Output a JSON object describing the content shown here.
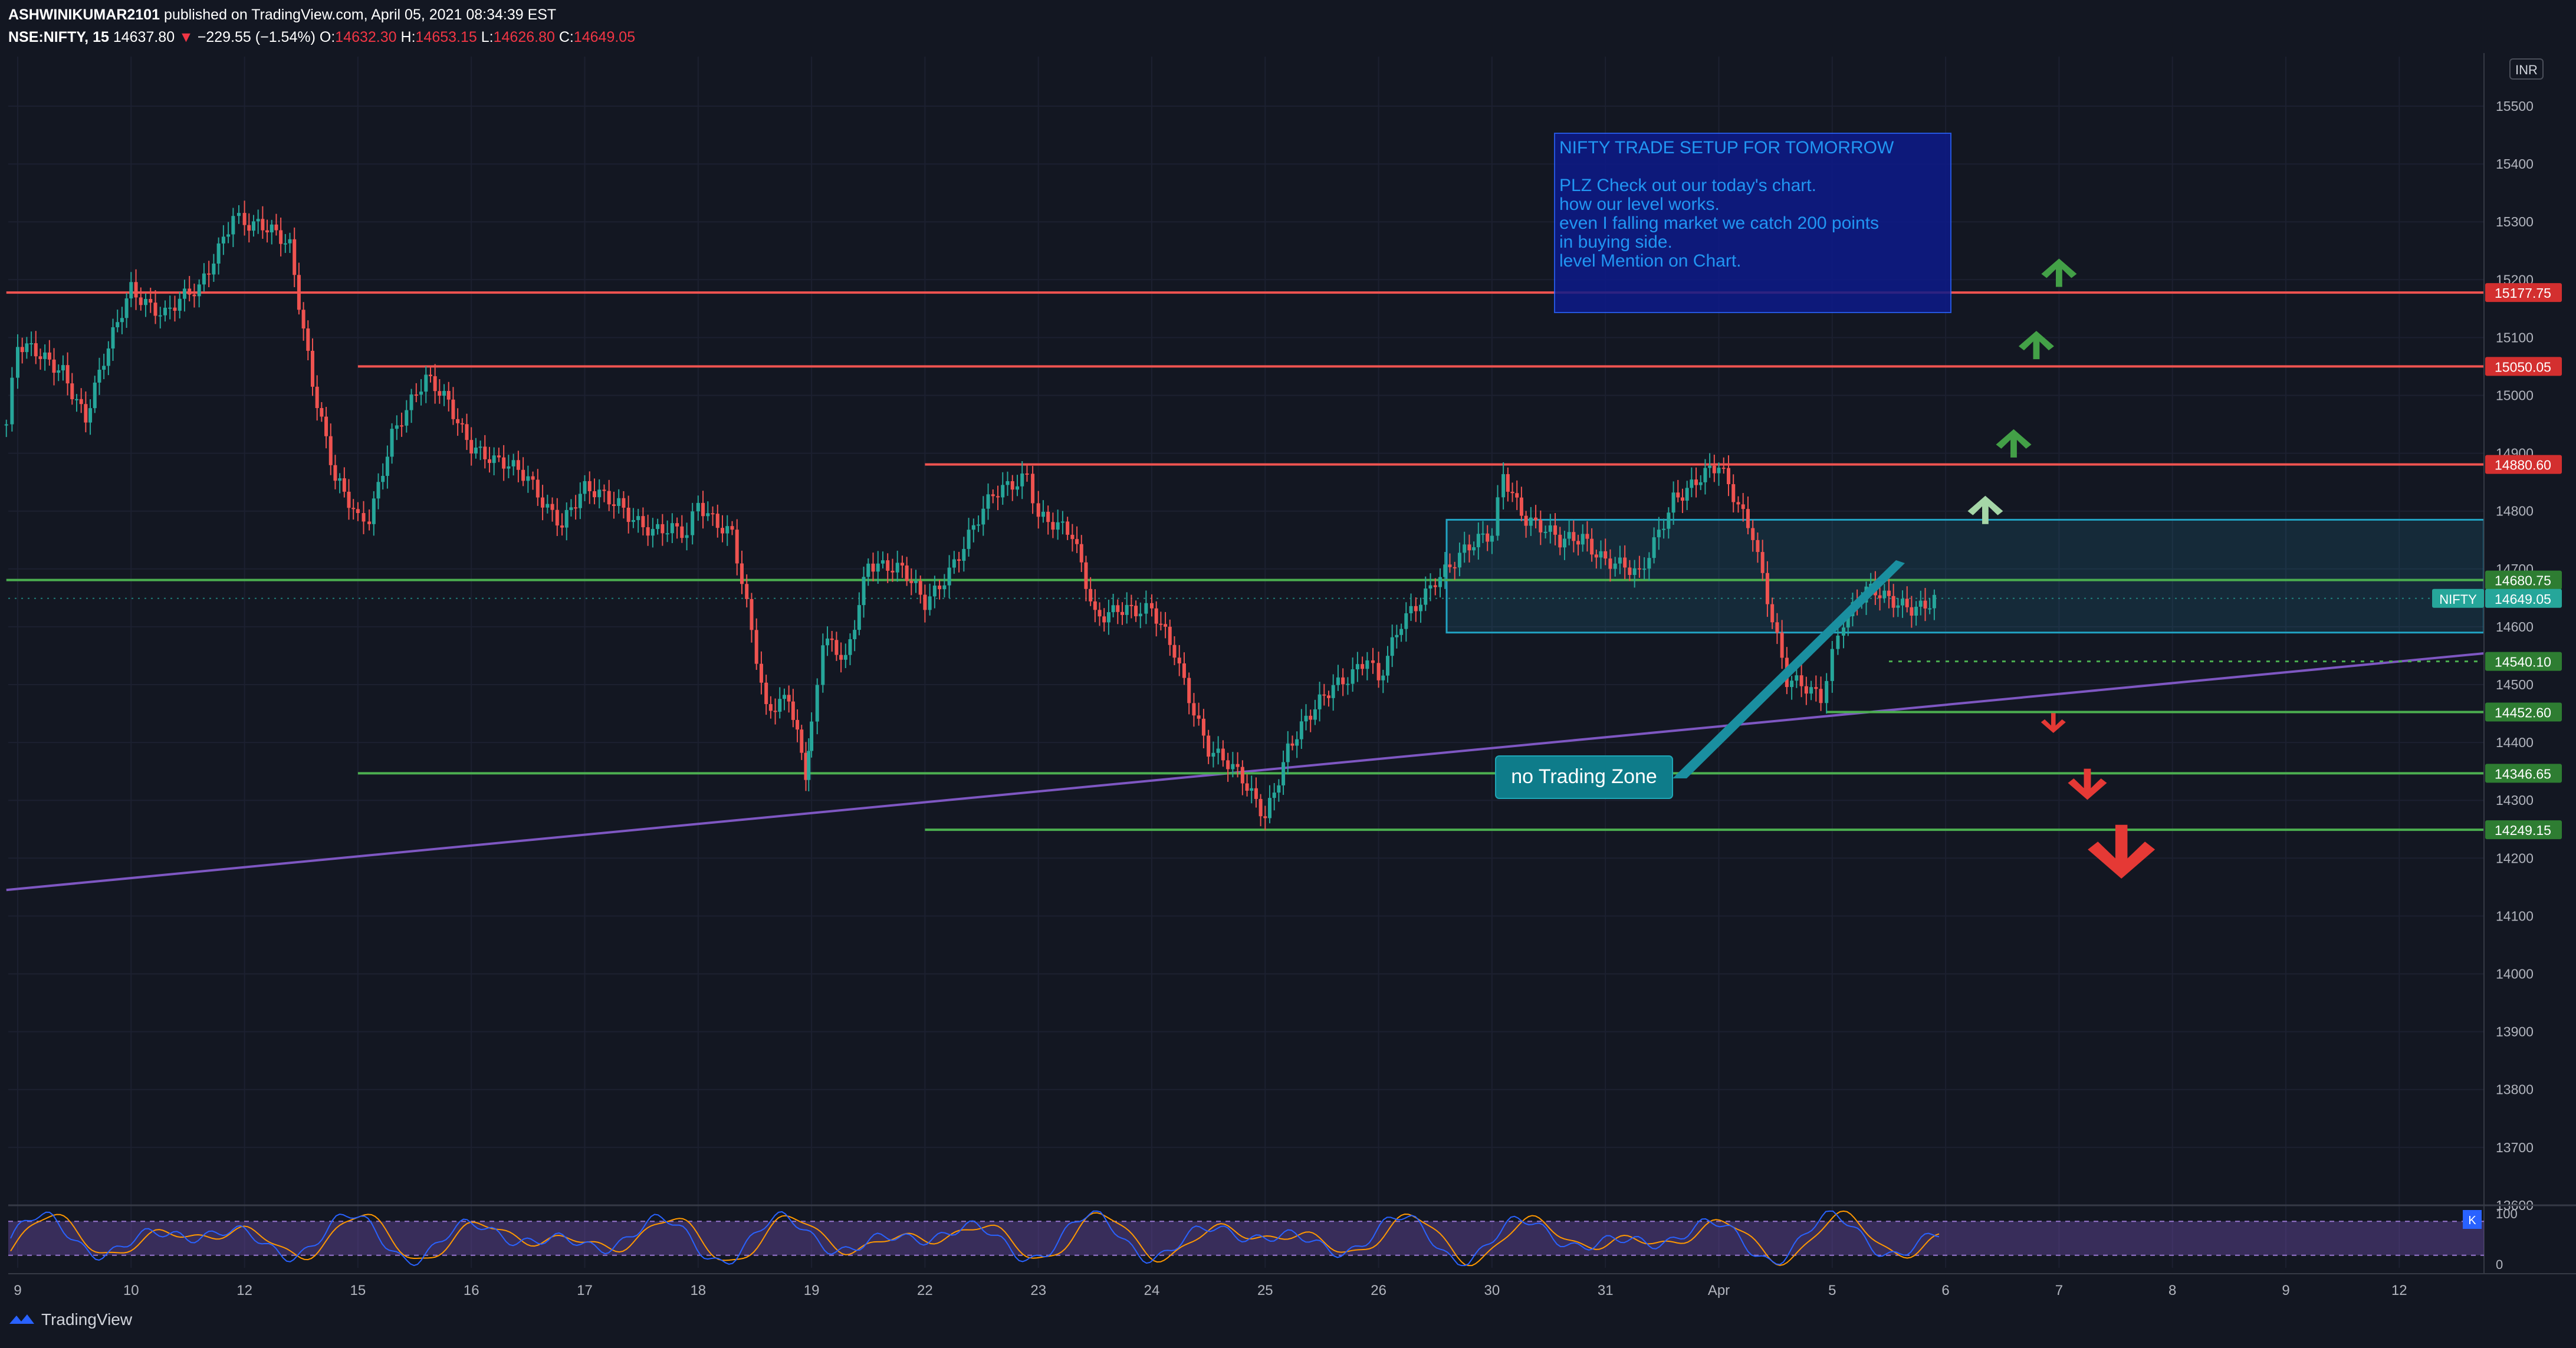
{
  "header": {
    "author": "ASHWINIKUMAR2101",
    "published": "published on TradingView.com, April 05, 2021 08:34:39 EST",
    "symbol": "NSE:NIFTY, 15",
    "last": "14637.80",
    "change": "−229.55 (−1.54%)",
    "o_label": "O:",
    "o": "14632.30",
    "h_label": "H:",
    "h": "14653.15",
    "l_label": "L:",
    "l": "14626.80",
    "c_label": "C:",
    "c": "14649.05"
  },
  "currency": "INR",
  "logo_text": "TradingView",
  "chart_data": {
    "type": "line",
    "title": "",
    "ylim": [
      13600,
      15600
    ],
    "y_ticks": [
      13600,
      13700,
      13800,
      13900,
      14000,
      14100,
      14200,
      14300,
      14400,
      14500,
      14600,
      14700,
      14800,
      14900,
      15000,
      15100,
      15200,
      15300,
      15400,
      15500
    ],
    "y_tick_labels": [
      "13600",
      "13700",
      "13800",
      "13900",
      "14000",
      "14100",
      "14200",
      "14300",
      "14400",
      "14500",
      "14600",
      "14700",
      "14800",
      "14900",
      "15000",
      "15100",
      "15200",
      "15300",
      "15400",
      "15500"
    ],
    "x_labels": [
      "9",
      "10",
      "12",
      "15",
      "16",
      "17",
      "18",
      "19",
      "22",
      "23",
      "24",
      "25",
      "26",
      "30",
      "31",
      "Apr",
      "5",
      "6",
      "7",
      "8",
      "9",
      "12"
    ],
    "x_positions": [
      0,
      1,
      2,
      3,
      4,
      5,
      6,
      7,
      8,
      9,
      10,
      11,
      12,
      13,
      14,
      15,
      16,
      17,
      18,
      19,
      20,
      21
    ],
    "price_series": {
      "x": [
        -0.1,
        0.0,
        0.4,
        0.6,
        1.0,
        1.3,
        1.6,
        1.9,
        2.0,
        2.4,
        2.6,
        2.8,
        3.0,
        3.1,
        3.3,
        3.6,
        3.8,
        4.0,
        4.2,
        4.5,
        4.8,
        5.0,
        5.3,
        5.6,
        5.9,
        6.0,
        6.3,
        6.6,
        6.8,
        6.95,
        7.0,
        7.1,
        7.3,
        7.5,
        7.8,
        8.0,
        8.3,
        8.6,
        8.9,
        9.0,
        9.3,
        9.5,
        9.7,
        9.9,
        10.0,
        10.2,
        10.5,
        10.8,
        11.0,
        11.2,
        11.4,
        11.6,
        11.9,
        12.0,
        12.2,
        12.5,
        12.8,
        13.0,
        13.1,
        13.3,
        13.6,
        13.8,
        14.0,
        14.3,
        14.6,
        15.0,
        15.3,
        15.6,
        15.9,
        16.0,
        16.1,
        16.3,
        16.5,
        16.7,
        16.9
      ],
      "close": [
        14950,
        15080,
        15050,
        14960,
        15190,
        15140,
        15180,
        15320,
        15300,
        15260,
        15030,
        14850,
        14780,
        14790,
        14940,
        15020,
        14990,
        14920,
        14880,
        14860,
        14780,
        14830,
        14820,
        14760,
        14760,
        14820,
        14760,
        14450,
        14490,
        14350,
        14420,
        14570,
        14540,
        14720,
        14690,
        14640,
        14730,
        14820,
        14870,
        14800,
        14750,
        14620,
        14640,
        14620,
        14620,
        14560,
        14390,
        14330,
        14280,
        14390,
        14440,
        14500,
        14550,
        14500,
        14600,
        14690,
        14730,
        14760,
        14870,
        14790,
        14740,
        14760,
        14720,
        14680,
        14830,
        14870,
        14770,
        14500,
        14480,
        14560,
        14620,
        14660,
        14640,
        14640,
        14649
      ]
    },
    "levels": [
      {
        "value": 15177.75,
        "label": "15177.75",
        "color": "#ef5350",
        "x_start": -0.1
      },
      {
        "value": 15050.05,
        "label": "15050.05",
        "color": "#ef5350",
        "x_start": 3.0
      },
      {
        "value": 14880.6,
        "label": "14880.60",
        "color": "#ef5350",
        "x_start": 8.0
      },
      {
        "value": 14680.75,
        "label": "14680.75",
        "color": "#4caf50",
        "x_start": -0.1
      },
      {
        "value": 14540.1,
        "label": "14540.10",
        "color": "#4caf50",
        "x_start": 16.5,
        "dashed": true
      },
      {
        "value": 14452.6,
        "label": "14452.60",
        "color": "#4caf50",
        "x_start": 15.95
      },
      {
        "value": 14346.65,
        "label": "14346.65",
        "color": "#4caf50",
        "x_start": 3.0
      },
      {
        "value": 14249.15,
        "label": "14249.15",
        "color": "#4caf50",
        "x_start": 8.0
      }
    ],
    "current": {
      "value": 14649.05,
      "label": "14649.05",
      "tag": "NIFTY"
    },
    "trendline": {
      "x": [
        -0.1,
        21.8
      ],
      "y": [
        14145,
        14555
      ],
      "color": "#7e57c2"
    },
    "zone": {
      "x": [
        12.6,
        21.8
      ],
      "y": [
        14590,
        14785
      ],
      "color": "#22a3c3"
    },
    "zone_label": "no Trading Zone",
    "note": {
      "lines": [
        "NIFTY TRADE SETUP FOR TOMORROW",
        "",
        "PLZ Check out our today's  chart.",
        "how our level works.",
        "even I falling market we catch 200 points",
        "in buying side.",
        "level Mention on Chart."
      ]
    },
    "up_arrows": [
      {
        "x": 18.0,
        "y": 15210,
        "color": "#43a047",
        "size": 1.0
      },
      {
        "x": 17.8,
        "y": 15085,
        "color": "#43a047",
        "size": 1.0
      },
      {
        "x": 17.6,
        "y": 14915,
        "color": "#43a047",
        "size": 1.0
      },
      {
        "x": 17.35,
        "y": 14800,
        "color": "#a5d6a7",
        "size": 1.0
      }
    ],
    "down_arrows": [
      {
        "x": 17.95,
        "y": 14435,
        "color": "#e53935",
        "size": 0.7
      },
      {
        "x": 18.25,
        "y": 14330,
        "color": "#e53935",
        "size": 1.1
      },
      {
        "x": 18.55,
        "y": 14215,
        "color": "#e53935",
        "size": 1.9
      }
    ],
    "oscillator": {
      "ylim": [
        0,
        100
      ],
      "y_tick_labels": [
        "100",
        "0"
      ],
      "upper": 80,
      "lower": 20,
      "badge": "K"
    }
  }
}
